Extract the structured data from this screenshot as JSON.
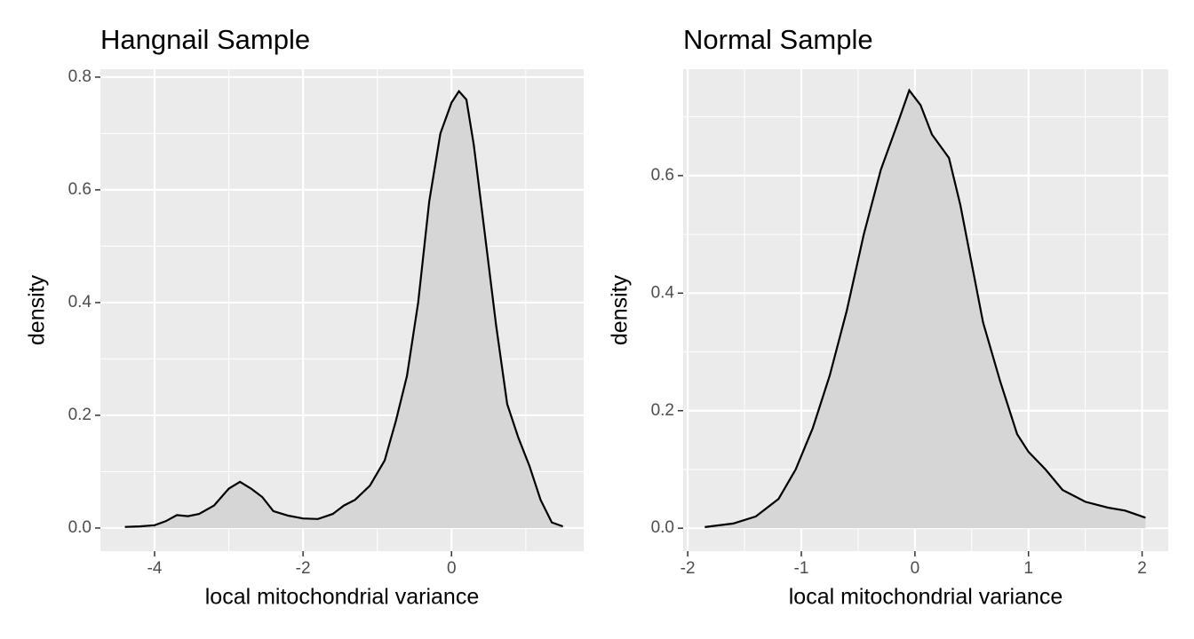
{
  "chart_data": [
    {
      "type": "density",
      "title": "Hangnail Sample",
      "x_label": "local mitochondrial variance",
      "y_label": "density",
      "x": [
        -4.4,
        -4.2,
        -4.0,
        -3.85,
        -3.7,
        -3.55,
        -3.4,
        -3.2,
        -3.0,
        -2.85,
        -2.7,
        -2.55,
        -2.4,
        -2.2,
        -2.0,
        -1.8,
        -1.6,
        -1.45,
        -1.3,
        -1.1,
        -0.9,
        -0.75,
        -0.6,
        -0.45,
        -0.3,
        -0.15,
        0,
        0.1,
        0.2,
        0.3,
        0.45,
        0.6,
        0.75,
        0.9,
        1.05,
        1.2,
        1.35,
        1.5
      ],
      "values": [
        0.002,
        0.003,
        0.005,
        0.012,
        0.023,
        0.021,
        0.025,
        0.04,
        0.07,
        0.082,
        0.07,
        0.055,
        0.03,
        0.022,
        0.017,
        0.016,
        0.025,
        0.04,
        0.05,
        0.075,
        0.12,
        0.19,
        0.27,
        0.4,
        0.58,
        0.7,
        0.755,
        0.775,
        0.76,
        0.68,
        0.52,
        0.36,
        0.22,
        0.16,
        0.11,
        0.05,
        0.01,
        0.003
      ],
      "color": "#000000",
      "fill": "#d6d6d6",
      "xlim": [
        -4.73,
        1.78
      ],
      "ylim": [
        -0.041,
        0.814
      ],
      "xticks": [
        -4,
        -2,
        0
      ],
      "yticks": [
        {
          "value": 0,
          "label": "0.0"
        },
        0.2,
        0.4,
        0.6,
        0.8
      ],
      "xminor": [
        -3,
        -1,
        1
      ],
      "yminor": [
        0.1,
        0.3,
        0.5,
        0.7
      ],
      "grid": true
    },
    {
      "type": "density",
      "title": "Normal Sample",
      "x_label": "local mitochondrial variance",
      "y_label": "density",
      "x": [
        -1.85,
        -1.6,
        -1.4,
        -1.2,
        -1.05,
        -0.9,
        -0.75,
        -0.6,
        -0.45,
        -0.3,
        -0.15,
        -0.05,
        0.05,
        0.15,
        0.3,
        0.4,
        0.5,
        0.6,
        0.75,
        0.9,
        1.0,
        1.15,
        1.3,
        1.5,
        1.7,
        1.85,
        2.03
      ],
      "values": [
        0.002,
        0.008,
        0.02,
        0.05,
        0.1,
        0.17,
        0.26,
        0.37,
        0.5,
        0.61,
        0.69,
        0.745,
        0.72,
        0.67,
        0.63,
        0.55,
        0.45,
        0.35,
        0.25,
        0.16,
        0.13,
        0.1,
        0.065,
        0.045,
        0.035,
        0.03,
        0.018
      ],
      "color": "#000000",
      "fill": "#d6d6d6",
      "xlim": [
        -2.04,
        2.23
      ],
      "ylim": [
        -0.039,
        0.781
      ],
      "xticks": [
        -2,
        -1,
        0,
        1,
        2
      ],
      "yticks": [
        {
          "value": 0,
          "label": "0.0"
        },
        0.2,
        0.4,
        0.6
      ],
      "xminor": [
        -1.5,
        -0.5,
        0.5,
        1.5
      ],
      "yminor": [
        0.1,
        0.3,
        0.5,
        0.7
      ],
      "grid": true
    }
  ]
}
